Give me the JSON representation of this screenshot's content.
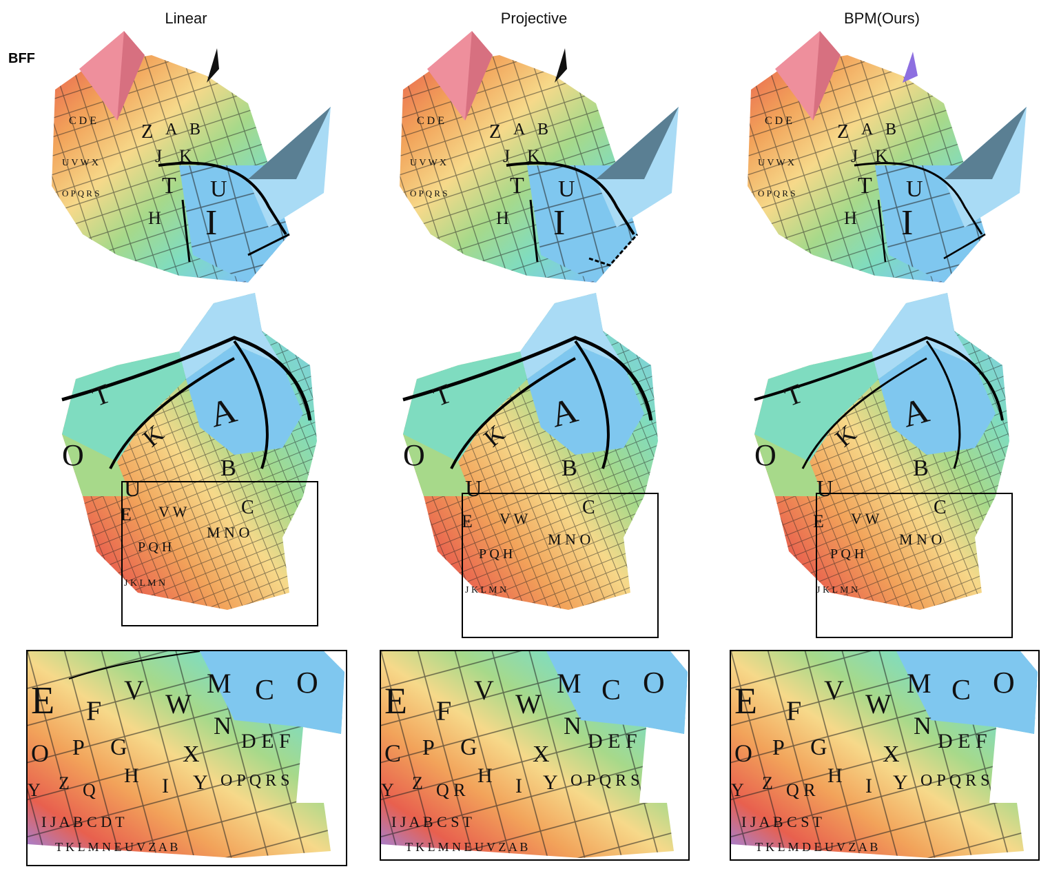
{
  "columns": [
    {
      "title": "Linear"
    },
    {
      "title": "Projective"
    },
    {
      "title": "BPM(Ours)"
    }
  ],
  "row_label": "BFF",
  "colors": {
    "pink_horn": "#ee8f9c",
    "blue": "#7fc7ef",
    "light_blue": "#a9dbf5",
    "teal": "#7fdcc0",
    "green": "#a7d98a",
    "yellow": "#f6d98a",
    "orange": "#f2a35a",
    "red": "#e8604e",
    "purple": "#9a86e8",
    "lavender": "#cfc4f1",
    "seam": "#000000"
  }
}
